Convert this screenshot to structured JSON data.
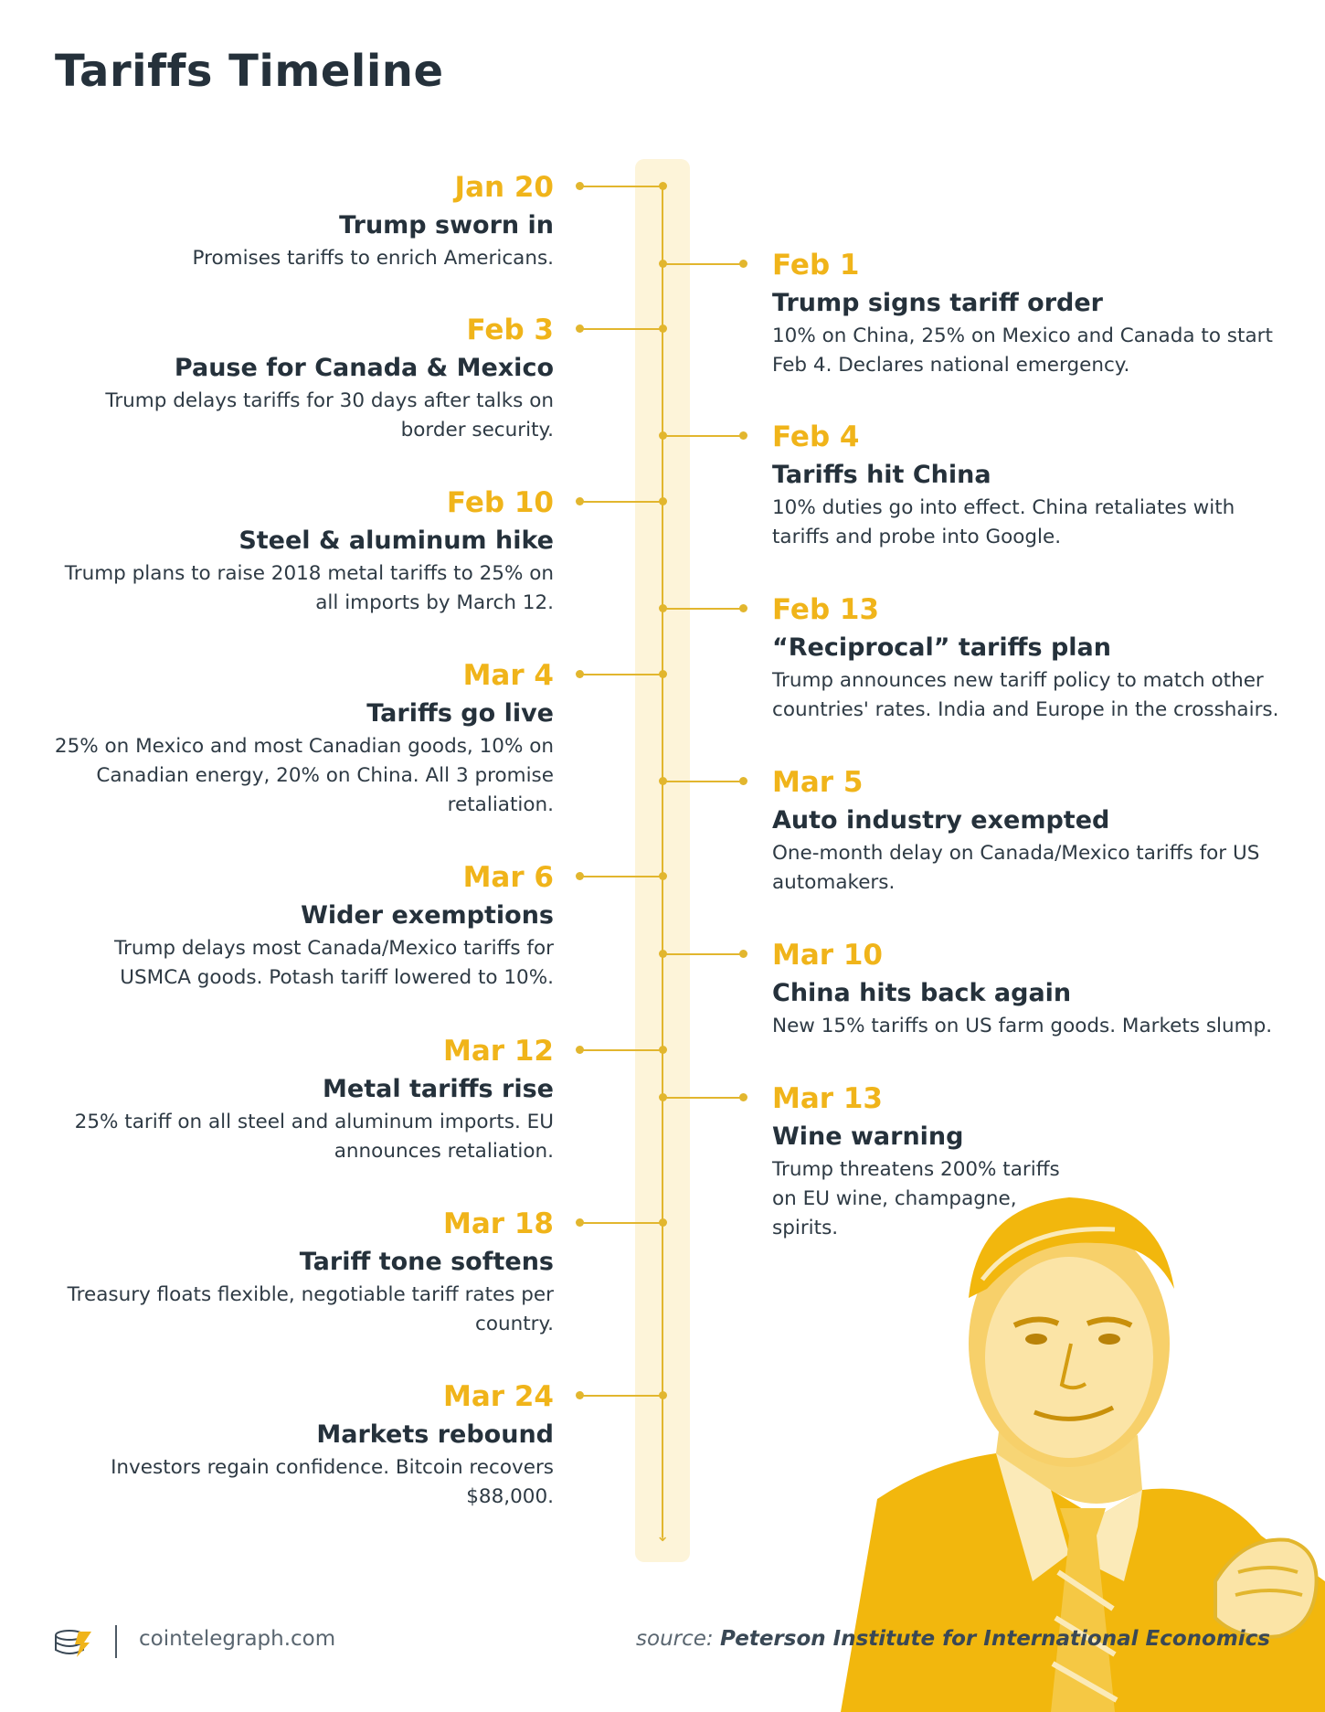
{
  "title": "Tariffs Timeline",
  "events": [
    {
      "date": "Jan 20",
      "title": "Trump sworn in",
      "desc": "Promises tariffs to enrich Americans."
    },
    {
      "date": "Feb 1",
      "title": "Trump signs tariff order",
      "desc": "10% on China, 25% on Mexico and Canada to start Feb 4. Declares national emergency."
    },
    {
      "date": "Feb 3",
      "title": "Pause for Canada & Mexico",
      "desc": "Trump delays tariffs for 30 days after talks on border security."
    },
    {
      "date": "Feb 4",
      "title": "Tariffs hit China",
      "desc": "10% duties go into effect. China retaliates with tariffs and probe into Google."
    },
    {
      "date": "Feb 10",
      "title": "Steel & aluminum hike",
      "desc": "Trump plans to raise 2018 metal tariffs to 25% on all imports by March 12."
    },
    {
      "date": "Feb 13",
      "title": "“Reciprocal” tariffs plan",
      "desc": "Trump announces new tariff policy to match other countries' rates. India and Europe in the crosshairs."
    },
    {
      "date": "Mar 4",
      "title": "Tariffs go live",
      "desc": "25% on Mexico and most Canadian goods, 10% on Canadian energy, 20% on China. All 3 promise retaliation."
    },
    {
      "date": "Mar 5",
      "title": "Auto industry exempted",
      "desc": "One-month delay on Canada/Mexico tariffs for US automakers."
    },
    {
      "date": "Mar 6",
      "title": "Wider exemptions",
      "desc": "Trump delays most Canada/Mexico tariffs for USMCA goods. Potash tariff lowered to 10%."
    },
    {
      "date": "Mar 10",
      "title": "China hits back again",
      "desc": "New 15% tariffs on US farm goods. Markets slump."
    },
    {
      "date": "Mar 12",
      "title": "Metal tariffs rise",
      "desc": "25% tariff on all steel and aluminum imports. EU announces retaliation."
    },
    {
      "date": "Mar 13",
      "title": "Wine warning",
      "desc": "Trump threatens 200% tariffs on EU wine, champagne, spirits."
    },
    {
      "date": "Mar 18",
      "title": "Tariff tone softens",
      "desc": "Treasury floats flexible, negotiable tariff rates per country."
    },
    {
      "date": "Mar 24",
      "title": "Markets rebound",
      "desc": "Investors regain confidence. Bitcoin recovers $88,000."
    }
  ],
  "footer": {
    "site": "cointelegraph.com",
    "source_label": "source:",
    "source_name": "Peterson Institute for International Economics"
  },
  "colors": {
    "accent": "#f0b41a",
    "line": "#e2b62e",
    "track": "#fdf4d9",
    "text": "#25313b"
  }
}
